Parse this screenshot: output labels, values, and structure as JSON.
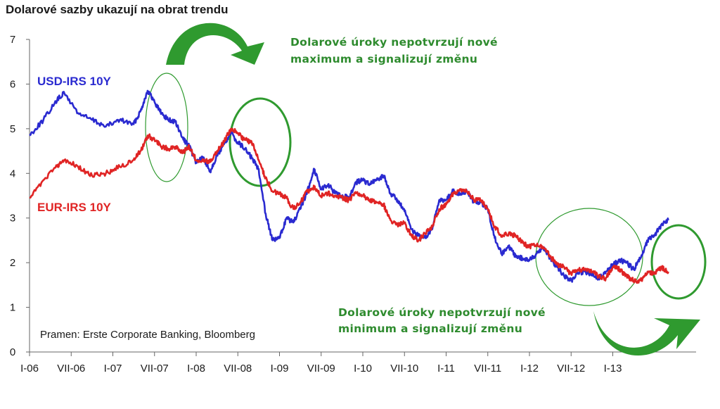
{
  "chart_data": {
    "type": "line",
    "title": "Dolarové sazby ukazují na obrat trendu",
    "ylim": [
      0,
      7
    ],
    "yticks": [
      0,
      1,
      2,
      3,
      4,
      5,
      6,
      7
    ],
    "xlim": [
      "2006-01",
      "2013-12"
    ],
    "xticks": [
      "I-06",
      "VII-06",
      "I-07",
      "VII-07",
      "I-08",
      "VII-08",
      "I-09",
      "VII-09",
      "I-10",
      "VII-10",
      "I-11",
      "VII-11",
      "I-12",
      "VII-12",
      "I-13"
    ],
    "grid": false,
    "series": [
      {
        "name": "USD-IRS 10Y",
        "color": "#2a2ad0",
        "points": [
          [
            "2006-01",
            4.85
          ],
          [
            "2006-03",
            5.2
          ],
          [
            "2006-05",
            5.65
          ],
          [
            "2006-06",
            5.8
          ],
          [
            "2006-08",
            5.35
          ],
          [
            "2006-10",
            5.2
          ],
          [
            "2006-12",
            5.05
          ],
          [
            "2007-02",
            5.2
          ],
          [
            "2007-04",
            5.1
          ],
          [
            "2007-05",
            5.4
          ],
          [
            "2007-06",
            5.85
          ],
          [
            "2007-07",
            5.6
          ],
          [
            "2007-08",
            5.35
          ],
          [
            "2007-09",
            5.2
          ],
          [
            "2007-10",
            5.15
          ],
          [
            "2007-11",
            4.8
          ],
          [
            "2007-12",
            4.6
          ],
          [
            "2008-01",
            4.25
          ],
          [
            "2008-02",
            4.35
          ],
          [
            "2008-03",
            4.05
          ],
          [
            "2008-04",
            4.4
          ],
          [
            "2008-05",
            4.65
          ],
          [
            "2008-06",
            4.9
          ],
          [
            "2008-07",
            4.7
          ],
          [
            "2008-08",
            4.55
          ],
          [
            "2008-09",
            4.35
          ],
          [
            "2008-10",
            4.1
          ],
          [
            "2008-11",
            3.1
          ],
          [
            "2008-12",
            2.5
          ],
          [
            "2009-01",
            2.55
          ],
          [
            "2009-02",
            3.0
          ],
          [
            "2009-03",
            2.9
          ],
          [
            "2009-04",
            3.2
          ],
          [
            "2009-05",
            3.6
          ],
          [
            "2009-06",
            4.1
          ],
          [
            "2009-07",
            3.65
          ],
          [
            "2009-08",
            3.75
          ],
          [
            "2009-09",
            3.55
          ],
          [
            "2009-10",
            3.5
          ],
          [
            "2009-11",
            3.45
          ],
          [
            "2009-12",
            3.8
          ],
          [
            "2010-01",
            3.85
          ],
          [
            "2010-02",
            3.75
          ],
          [
            "2010-03",
            3.85
          ],
          [
            "2010-04",
            3.95
          ],
          [
            "2010-05",
            3.55
          ],
          [
            "2010-06",
            3.4
          ],
          [
            "2010-07",
            3.15
          ],
          [
            "2010-08",
            2.75
          ],
          [
            "2010-09",
            2.6
          ],
          [
            "2010-10",
            2.55
          ],
          [
            "2010-11",
            2.75
          ],
          [
            "2010-12",
            3.4
          ],
          [
            "2011-01",
            3.4
          ],
          [
            "2011-02",
            3.6
          ],
          [
            "2011-03",
            3.55
          ],
          [
            "2011-04",
            3.6
          ],
          [
            "2011-05",
            3.35
          ],
          [
            "2011-06",
            3.35
          ],
          [
            "2011-07",
            3.2
          ],
          [
            "2011-08",
            2.55
          ],
          [
            "2011-09",
            2.2
          ],
          [
            "2011-10",
            2.35
          ],
          [
            "2011-11",
            2.15
          ],
          [
            "2011-12",
            2.1
          ],
          [
            "2012-01",
            2.05
          ],
          [
            "2012-02",
            2.2
          ],
          [
            "2012-03",
            2.35
          ],
          [
            "2012-04",
            2.1
          ],
          [
            "2012-05",
            1.9
          ],
          [
            "2012-06",
            1.7
          ],
          [
            "2012-07",
            1.6
          ],
          [
            "2012-08",
            1.75
          ],
          [
            "2012-09",
            1.8
          ],
          [
            "2012-10",
            1.75
          ],
          [
            "2012-11",
            1.65
          ],
          [
            "2012-12",
            1.8
          ],
          [
            "2013-01",
            1.95
          ],
          [
            "2013-02",
            2.05
          ],
          [
            "2013-03",
            2.0
          ],
          [
            "2013-04",
            1.85
          ],
          [
            "2013-05",
            2.1
          ],
          [
            "2013-06",
            2.5
          ],
          [
            "2013-07",
            2.6
          ],
          [
            "2013-08",
            2.85
          ],
          [
            "2013-09",
            2.95
          ]
        ]
      },
      {
        "name": "EUR-IRS 10Y",
        "color": "#e02424",
        "points": [
          [
            "2006-01",
            3.45
          ],
          [
            "2006-03",
            3.85
          ],
          [
            "2006-05",
            4.15
          ],
          [
            "2006-06",
            4.3
          ],
          [
            "2006-08",
            4.15
          ],
          [
            "2006-10",
            3.95
          ],
          [
            "2006-12",
            4.0
          ],
          [
            "2007-02",
            4.15
          ],
          [
            "2007-04",
            4.3
          ],
          [
            "2007-05",
            4.5
          ],
          [
            "2007-06",
            4.85
          ],
          [
            "2007-07",
            4.75
          ],
          [
            "2007-08",
            4.6
          ],
          [
            "2007-09",
            4.55
          ],
          [
            "2007-10",
            4.6
          ],
          [
            "2007-11",
            4.45
          ],
          [
            "2007-12",
            4.6
          ],
          [
            "2008-01",
            4.3
          ],
          [
            "2008-02",
            4.3
          ],
          [
            "2008-03",
            4.25
          ],
          [
            "2008-04",
            4.5
          ],
          [
            "2008-05",
            4.7
          ],
          [
            "2008-06",
            5.0
          ],
          [
            "2008-07",
            4.9
          ],
          [
            "2008-08",
            4.75
          ],
          [
            "2008-09",
            4.7
          ],
          [
            "2008-10",
            4.3
          ],
          [
            "2008-11",
            3.9
          ],
          [
            "2008-12",
            3.6
          ],
          [
            "2009-01",
            3.55
          ],
          [
            "2009-02",
            3.45
          ],
          [
            "2009-03",
            3.2
          ],
          [
            "2009-04",
            3.35
          ],
          [
            "2009-05",
            3.6
          ],
          [
            "2009-06",
            3.7
          ],
          [
            "2009-07",
            3.5
          ],
          [
            "2009-08",
            3.55
          ],
          [
            "2009-09",
            3.5
          ],
          [
            "2009-10",
            3.45
          ],
          [
            "2009-11",
            3.4
          ],
          [
            "2009-12",
            3.55
          ],
          [
            "2010-01",
            3.5
          ],
          [
            "2010-02",
            3.4
          ],
          [
            "2010-03",
            3.35
          ],
          [
            "2010-04",
            3.3
          ],
          [
            "2010-05",
            2.95
          ],
          [
            "2010-06",
            2.85
          ],
          [
            "2010-07",
            2.9
          ],
          [
            "2010-08",
            2.6
          ],
          [
            "2010-09",
            2.5
          ],
          [
            "2010-10",
            2.65
          ],
          [
            "2010-11",
            2.8
          ],
          [
            "2010-12",
            3.2
          ],
          [
            "2011-01",
            3.3
          ],
          [
            "2011-02",
            3.55
          ],
          [
            "2011-03",
            3.65
          ],
          [
            "2011-04",
            3.6
          ],
          [
            "2011-05",
            3.4
          ],
          [
            "2011-06",
            3.4
          ],
          [
            "2011-07",
            3.2
          ],
          [
            "2011-08",
            2.8
          ],
          [
            "2011-09",
            2.6
          ],
          [
            "2011-10",
            2.65
          ],
          [
            "2011-11",
            2.6
          ],
          [
            "2011-12",
            2.45
          ],
          [
            "2012-01",
            2.35
          ],
          [
            "2012-02",
            2.4
          ],
          [
            "2012-03",
            2.35
          ],
          [
            "2012-04",
            2.15
          ],
          [
            "2012-05",
            1.95
          ],
          [
            "2012-06",
            1.9
          ],
          [
            "2012-07",
            1.75
          ],
          [
            "2012-08",
            1.85
          ],
          [
            "2012-09",
            1.85
          ],
          [
            "2012-10",
            1.8
          ],
          [
            "2012-11",
            1.7
          ],
          [
            "2012-12",
            1.65
          ],
          [
            "2013-01",
            1.9
          ],
          [
            "2013-02",
            1.85
          ],
          [
            "2013-03",
            1.7
          ],
          [
            "2013-04",
            1.6
          ],
          [
            "2013-05",
            1.6
          ],
          [
            "2013-06",
            1.8
          ],
          [
            "2013-07",
            1.75
          ],
          [
            "2013-08",
            1.9
          ],
          [
            "2013-09",
            1.8
          ]
        ]
      }
    ],
    "annotations": {
      "top_line1": "Dolarové úroky nepotvrzují nové",
      "top_line2": "maximum a signalizují změnu",
      "bottom_line1": "Dolarové úroky nepotvrzují nové",
      "bottom_line2": "minimum a signalizují změnu",
      "source": "Pramen: Erste Corporate Banking, Bloomberg"
    },
    "colors": {
      "annotation": "#2e8b2e",
      "arrow": "#2f9a2f",
      "axis": "#666666"
    }
  }
}
